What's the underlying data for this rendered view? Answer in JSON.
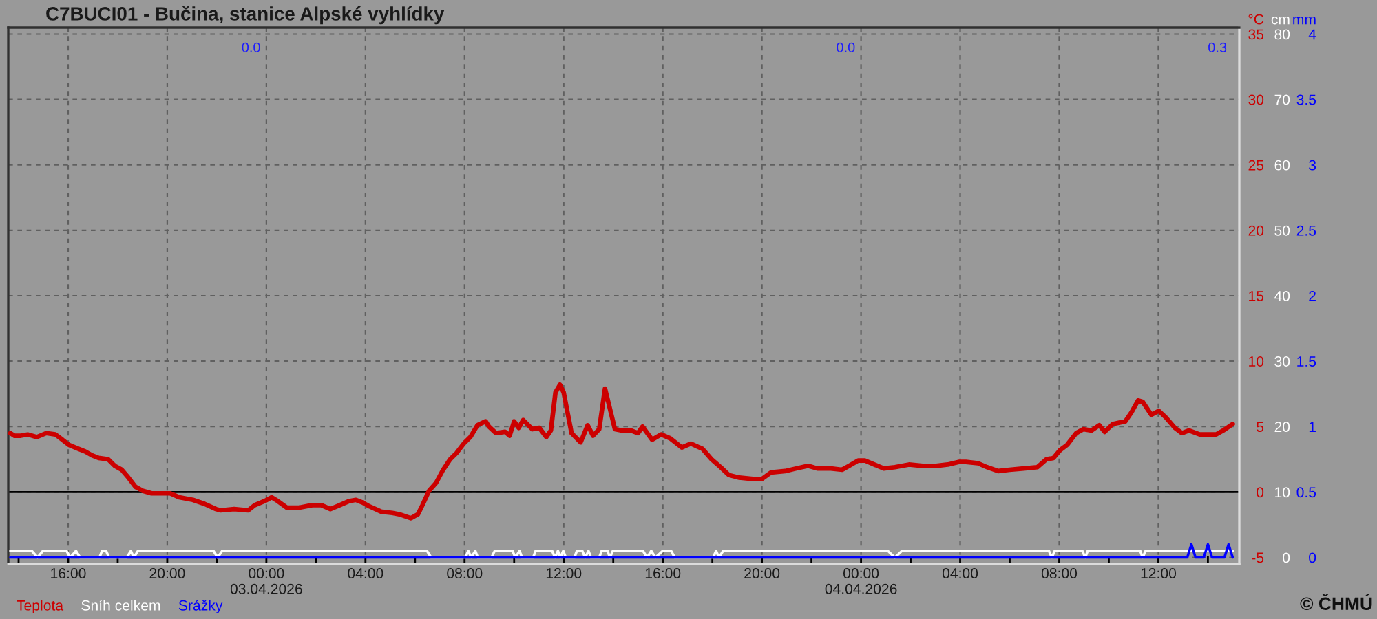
{
  "chart_data": {
    "type": "line",
    "title": "C7BUCI01 - Bučina, stanice Alpské vyhlídky",
    "ylabel": "°C",
    "y2label": "cm",
    "y3label": "mm",
    "xlim": [
      "2026-04-02T13:35",
      "2026-04-04T15:16"
    ],
    "xticks": [
      {
        "value": "2026-04-02T14:00",
        "label": null
      },
      {
        "value": "2026-04-02T16:00",
        "label": "16:00"
      },
      {
        "value": "2026-04-02T18:00",
        "label": null
      },
      {
        "value": "2026-04-02T20:00",
        "label": "20:00"
      },
      {
        "value": "2026-04-02T22:00",
        "label": null
      },
      {
        "value": "2026-04-03T00:00",
        "label": "00:00\n03.04.2026"
      },
      {
        "value": "2026-04-03T02:00",
        "label": null
      },
      {
        "value": "2026-04-03T04:00",
        "label": "04:00"
      },
      {
        "value": "2026-04-03T06:00",
        "label": null
      },
      {
        "value": "2026-04-03T08:00",
        "label": "08:00"
      },
      {
        "value": "2026-04-03T10:00",
        "label": null
      },
      {
        "value": "2026-04-03T12:00",
        "label": "12:00"
      },
      {
        "value": "2026-04-03T14:00",
        "label": null
      },
      {
        "value": "2026-04-03T16:00",
        "label": "16:00"
      },
      {
        "value": "2026-04-03T18:00",
        "label": null
      },
      {
        "value": "2026-04-03T20:00",
        "label": "20:00"
      },
      {
        "value": "2026-04-03T22:00",
        "label": null
      },
      {
        "value": "2026-04-04T00:00",
        "label": "00:00\n04.04.2026"
      },
      {
        "value": "2026-04-04T02:00",
        "label": null
      },
      {
        "value": "2026-04-04T04:00",
        "label": "04:00"
      },
      {
        "value": "2026-04-04T06:00",
        "label": null
      },
      {
        "value": "2026-04-04T08:00",
        "label": "08:00"
      },
      {
        "value": "2026-04-04T10:00",
        "label": null
      },
      {
        "value": "2026-04-04T12:00",
        "label": "12:00"
      },
      {
        "value": "2026-04-04T14:00",
        "label": null
      }
    ],
    "ylim": [
      -5.5,
      35.5
    ],
    "yticks": [
      -5,
      0,
      5,
      10,
      15,
      20,
      25,
      30,
      35
    ],
    "y2lim": [
      -1,
      81
    ],
    "y2ticks": [
      0,
      10,
      20,
      30,
      40,
      50,
      60,
      70,
      80
    ],
    "y3lim": [
      -0.05,
      4.05
    ],
    "y3ticks": [
      0,
      0.5,
      1,
      1.5,
      2,
      2.5,
      3,
      3.5,
      4
    ],
    "grid": true,
    "legend": "bottom left",
    "line_style": "solid",
    "ref_lines": [
      {
        "axis": "y",
        "value": 0,
        "color": "#000000"
      }
    ],
    "annotations": [
      "0.0",
      "0.0",
      "0.3",
      "© ČHMÚ"
    ],
    "series": [
      {
        "name": "Teplota",
        "color": "#cc0000",
        "x": [
          "2026-04-02T13:40",
          "2026-04-02T13:50",
          "2026-04-02T14:05",
          "2026-04-02T14:22",
          "2026-04-02T14:44",
          "2026-04-02T15:07",
          "2026-04-02T15:29",
          "2026-04-02T15:46",
          "2026-04-02T16:02",
          "2026-04-02T16:25",
          "2026-04-02T16:41",
          "2026-04-02T16:58",
          "2026-04-02T17:14",
          "2026-04-02T17:37",
          "2026-04-02T17:53",
          "2026-04-02T18:10",
          "2026-04-02T18:26",
          "2026-04-02T18:43",
          "2026-04-02T19:00",
          "2026-04-02T19:22",
          "2026-04-02T20:07",
          "2026-04-02T20:29",
          "2026-04-02T21:02",
          "2026-04-02T21:30",
          "2026-04-02T21:58",
          "2026-04-02T22:09",
          "2026-04-02T22:42",
          "2026-04-02T23:16",
          "2026-04-02T23:32",
          "2026-04-02T23:55",
          "2026-04-03T00:13",
          "2026-04-03T00:28",
          "2026-04-03T00:50",
          "2026-04-03T01:18",
          "2026-04-03T01:51",
          "2026-04-03T02:13",
          "2026-04-03T02:35",
          "2026-04-03T02:58",
          "2026-04-03T03:20",
          "2026-04-03T03:37",
          "2026-04-03T03:53",
          "2026-04-03T04:10",
          "2026-04-03T04:38",
          "2026-04-03T05:05",
          "2026-04-03T05:22",
          "2026-04-03T05:50",
          "2026-04-03T06:07",
          "2026-04-03T06:18",
          "2026-04-03T06:34",
          "2026-04-03T06:51",
          "2026-04-03T07:08",
          "2026-04-03T07:25",
          "2026-04-03T07:41",
          "2026-04-03T07:58",
          "2026-04-03T08:14",
          "2026-04-03T08:31",
          "2026-04-03T08:51",
          "2026-04-03T08:59",
          "2026-04-03T09:16",
          "2026-04-03T09:38",
          "2026-04-03T09:49",
          "2026-04-03T10:00",
          "2026-04-03T10:11",
          "2026-04-03T10:22",
          "2026-04-03T10:44",
          "2026-04-03T11:01",
          "2026-04-03T11:18",
          "2026-04-03T11:29",
          "2026-04-03T11:40",
          "2026-04-03T11:51",
          "2026-04-03T12:00",
          "2026-04-03T12:19",
          "2026-04-03T12:41",
          "2026-04-03T12:58",
          "2026-04-03T13:11",
          "2026-04-03T13:26",
          "2026-04-03T13:40",
          "2026-04-03T14:04",
          "2026-04-03T14:21",
          "2026-04-03T14:43",
          "2026-04-03T15:00",
          "2026-04-03T15:11",
          "2026-04-03T15:34",
          "2026-04-03T15:56",
          "2026-04-03T16:18",
          "2026-04-03T16:46",
          "2026-04-03T17:08",
          "2026-04-03T17:36",
          "2026-04-03T17:58",
          "2026-04-03T18:20",
          "2026-04-03T18:40",
          "2026-04-03T19:05",
          "2026-04-03T19:38",
          "2026-04-03T20:00",
          "2026-04-03T20:22",
          "2026-04-03T20:56",
          "2026-04-03T21:23",
          "2026-04-03T21:52",
          "2026-04-03T22:14",
          "2026-04-03T22:47",
          "2026-04-03T23:14",
          "2026-04-03T23:31",
          "2026-04-03T23:53",
          "2026-04-04T00:10",
          "2026-04-04T00:32",
          "2026-04-04T00:55",
          "2026-04-04T01:22",
          "2026-04-04T01:56",
          "2026-04-04T02:29",
          "2026-04-04T03:02",
          "2026-04-04T03:30",
          "2026-04-04T03:58",
          "2026-04-04T04:14",
          "2026-04-04T04:43",
          "2026-04-04T05:05",
          "2026-04-04T05:32",
          "2026-04-04T06:00",
          "2026-04-04T06:34",
          "2026-04-04T07:07",
          "2026-04-04T07:29",
          "2026-04-04T07:46",
          "2026-04-04T08:02",
          "2026-04-04T08:19",
          "2026-04-04T08:41",
          "2026-04-04T08:58",
          "2026-04-04T09:18",
          "2026-04-04T09:37",
          "2026-04-04T09:50",
          "2026-04-04T10:10",
          "2026-04-04T10:40",
          "2026-04-04T10:55",
          "2026-04-04T11:11",
          "2026-04-04T11:22",
          "2026-04-04T11:43",
          "2026-04-04T12:01",
          "2026-04-04T12:18",
          "2026-04-04T12:40",
          "2026-04-04T12:57",
          "2026-04-04T13:14",
          "2026-04-04T13:40",
          "2026-04-04T14:20",
          "2026-04-04T14:37",
          "2026-04-04T15:00"
        ],
        "values": [
          4.5,
          4.3,
          4.3,
          4.4,
          4.2,
          4.5,
          4.4,
          4.0,
          3.6,
          3.3,
          3.1,
          2.8,
          2.6,
          2.5,
          2.0,
          1.7,
          1.1,
          0.4,
          0.1,
          -0.1,
          -0.1,
          -0.4,
          -0.6,
          -0.9,
          -1.3,
          -1.4,
          -1.3,
          -1.4,
          -1.0,
          -0.7,
          -0.4,
          -0.7,
          -1.2,
          -1.2,
          -1.0,
          -1.0,
          -1.3,
          -1.0,
          -0.7,
          -0.6,
          -0.8,
          -1.1,
          -1.5,
          -1.6,
          -1.7,
          -2.0,
          -1.7,
          -1.0,
          0.1,
          0.7,
          1.7,
          2.5,
          3.0,
          3.7,
          4.2,
          5.1,
          5.4,
          5.0,
          4.5,
          4.6,
          4.3,
          5.4,
          4.9,
          5.5,
          4.8,
          4.9,
          4.2,
          4.7,
          7.6,
          8.2,
          7.6,
          4.5,
          3.8,
          5.1,
          4.3,
          4.8,
          7.9,
          4.8,
          4.7,
          4.7,
          4.5,
          5.0,
          4.0,
          4.4,
          4.1,
          3.4,
          3.7,
          3.3,
          2.5,
          1.9,
          1.3,
          1.1,
          1.0,
          1.0,
          1.5,
          1.6,
          1.8,
          2.0,
          1.8,
          1.8,
          1.7,
          2.0,
          2.4,
          2.4,
          2.1,
          1.8,
          1.9,
          2.1,
          2.0,
          2.0,
          2.1,
          2.3,
          2.3,
          2.2,
          1.9,
          1.6,
          1.7,
          1.8,
          1.9,
          2.5,
          2.6,
          3.2,
          3.6,
          4.5,
          4.8,
          4.7,
          5.1,
          4.6,
          5.2,
          5.4,
          6.1,
          7.0,
          6.9,
          5.9,
          6.2,
          5.7,
          4.9,
          4.5,
          4.7,
          4.4,
          4.4,
          4.7,
          5.2
        ]
      },
      {
        "name": "Sníh celkem",
        "color": "#ffffff",
        "axis": "y2",
        "x": [
          "2026-04-02T13:40",
          "2026-04-02T14:32",
          "2026-04-02T14:46",
          "2026-04-02T14:59",
          "2026-04-02T15:56",
          "2026-04-02T16:05",
          "2026-04-02T16:19",
          "2026-04-02T16:29",
          "2026-04-02T17:16",
          "2026-04-02T17:22",
          "2026-04-02T17:32",
          "2026-04-02T17:39",
          "2026-04-02T18:22",
          "2026-04-02T18:32",
          "2026-04-02T18:39",
          "2026-04-02T18:49",
          "2026-04-02T21:52",
          "2026-04-02T22:02",
          "2026-04-02T22:13",
          "2026-04-03T06:29",
          "2026-04-03T06:39",
          "2026-04-03T08:02",
          "2026-04-03T08:09",
          "2026-04-03T08:16",
          "2026-04-03T08:26",
          "2026-04-03T08:32",
          "2026-04-03T09:05",
          "2026-04-03T09:13",
          "2026-04-03T09:56",
          "2026-04-03T10:03",
          "2026-04-03T10:13",
          "2026-04-03T10:19",
          "2026-04-03T10:46",
          "2026-04-03T10:52",
          "2026-04-03T11:32",
          "2026-04-03T11:39",
          "2026-04-03T11:46",
          "2026-04-03T11:52",
          "2026-04-03T11:59",
          "2026-04-03T12:05",
          "2026-04-03T12:26",
          "2026-04-03T12:32",
          "2026-04-03T12:45",
          "2026-04-03T12:52",
          "2026-04-03T13:00",
          "2026-04-03T13:06",
          "2026-04-03T13:26",
          "2026-04-03T13:32",
          "2026-04-03T13:46",
          "2026-04-03T13:52",
          "2026-04-03T13:59",
          "2026-04-03T15:12",
          "2026-04-03T15:22",
          "2026-04-03T15:32",
          "2026-04-03T15:42",
          "2026-04-03T16:00",
          "2026-04-03T16:20",
          "2026-04-03T16:29",
          "2026-04-03T18:02",
          "2026-04-03T18:09",
          "2026-04-03T18:16",
          "2026-04-03T18:26",
          "2026-04-04T01:05",
          "2026-04-04T01:22",
          "2026-04-04T01:39",
          "2026-04-04T07:35",
          "2026-04-04T07:42",
          "2026-04-04T07:49",
          "2026-04-04T08:56",
          "2026-04-04T09:03",
          "2026-04-04T09:09",
          "2026-04-04T11:16",
          "2026-04-04T11:22",
          "2026-04-04T11:29",
          "2026-04-04T15:00"
        ],
        "values": [
          1,
          1,
          0,
          1,
          1,
          0,
          1,
          0,
          0,
          1,
          1,
          0,
          0,
          1,
          0,
          1,
          1,
          0,
          1,
          1,
          0,
          0,
          1,
          0,
          1,
          0,
          0,
          1,
          1,
          0,
          1,
          0,
          0,
          1,
          1,
          0,
          1,
          0,
          1,
          0,
          0,
          1,
          1,
          0,
          1,
          0,
          0,
          1,
          1,
          0,
          1,
          1,
          0,
          1,
          0,
          1,
          1,
          0,
          0,
          1,
          0,
          1,
          1,
          0,
          1,
          1,
          0,
          1,
          1,
          0,
          1,
          1,
          0,
          1,
          1
        ]
      },
      {
        "name": "Srážky",
        "color": "#0000ff",
        "axis": "y3",
        "x": [
          "2026-04-02T13:40",
          "2026-04-04T13:10",
          "2026-04-04T13:20",
          "2026-04-04T13:30",
          "2026-04-04T13:50",
          "2026-04-04T14:00",
          "2026-04-04T14:10",
          "2026-04-04T14:40",
          "2026-04-04T14:50",
          "2026-04-04T15:00"
        ],
        "values": [
          0,
          0,
          0.1,
          0,
          0,
          0.1,
          0,
          0,
          0.1,
          0
        ]
      }
    ]
  }
}
